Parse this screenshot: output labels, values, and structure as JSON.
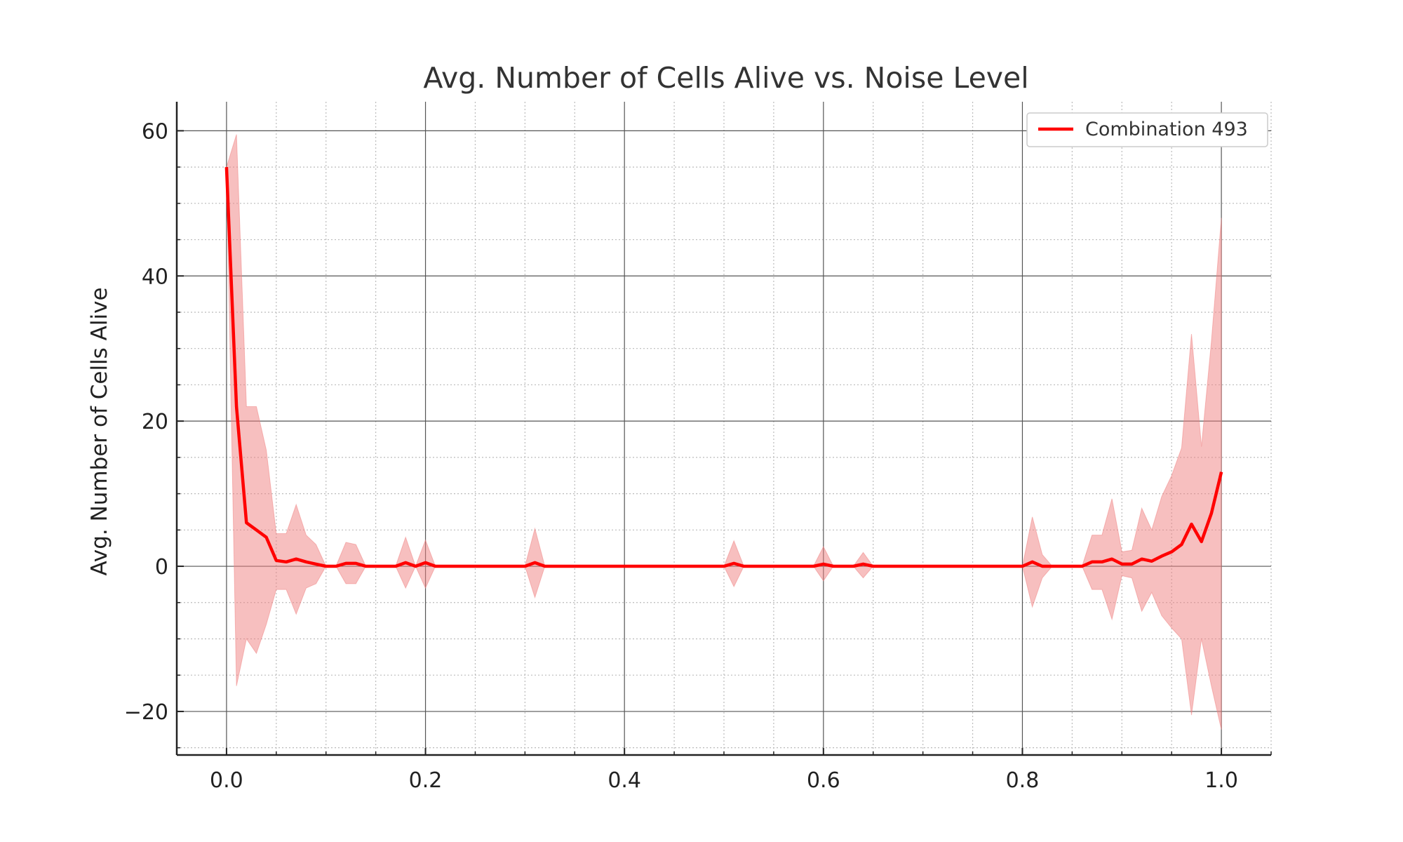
{
  "chart_data": {
    "type": "line",
    "title": "Avg. Number of Cells Alive vs. Noise Level",
    "xlabel": "",
    "ylabel": "Avg. Number of Cells Alive",
    "xlim": [
      -0.05,
      1.05
    ],
    "ylim": [
      -26,
      64
    ],
    "x_ticks": [
      0.0,
      0.2,
      0.4,
      0.6,
      0.8,
      1.0
    ],
    "x_tick_labels": [
      "0.0",
      "0.2",
      "0.4",
      "0.6",
      "0.8",
      "1.0"
    ],
    "y_ticks": [
      -20,
      0,
      20,
      40,
      60
    ],
    "y_tick_labels": [
      "−20",
      "0",
      "20",
      "40",
      "60"
    ],
    "grid": true,
    "legend_position": "top-right",
    "colors": {
      "line": "#ff0000",
      "band": "#f08080"
    },
    "series": [
      {
        "name": "Combination 493",
        "x": [
          0.0,
          0.01,
          0.02,
          0.03,
          0.04,
          0.05,
          0.06,
          0.07,
          0.08,
          0.09,
          0.1,
          0.11,
          0.12,
          0.13,
          0.14,
          0.15,
          0.16,
          0.17,
          0.18,
          0.19,
          0.2,
          0.21,
          0.22,
          0.23,
          0.24,
          0.25,
          0.26,
          0.27,
          0.28,
          0.29,
          0.3,
          0.31,
          0.32,
          0.33,
          0.5,
          0.51,
          0.52,
          0.59,
          0.6,
          0.61,
          0.63,
          0.64,
          0.65,
          0.69,
          0.7,
          0.71,
          0.8,
          0.81,
          0.82,
          0.83,
          0.84,
          0.85,
          0.86,
          0.87,
          0.88,
          0.89,
          0.9,
          0.91,
          0.92,
          0.93,
          0.94,
          0.95,
          0.96,
          0.97,
          0.98,
          0.99,
          1.0
        ],
        "y": [
          55,
          22,
          6,
          5,
          4,
          0.8,
          0.6,
          1.0,
          0.6,
          0.3,
          0,
          0,
          0.4,
          0.4,
          0,
          0,
          0,
          0,
          0.5,
          0,
          0.5,
          0,
          0,
          0,
          0,
          0,
          0,
          0,
          0,
          0,
          0,
          0.5,
          0,
          0,
          0,
          0.4,
          0,
          0,
          0.3,
          0,
          0,
          0.3,
          0,
          0,
          0,
          0,
          0,
          0.6,
          0,
          0,
          0,
          0,
          0,
          0.6,
          0.6,
          1.0,
          0.3,
          0.3,
          1.0,
          0.7,
          1.4,
          2.0,
          3.0,
          5.8,
          3.4,
          7.3,
          13
        ],
        "lower": [
          55,
          -16.5,
          -10,
          -12,
          -8,
          -3.2,
          -3.2,
          -6.6,
          -3,
          -2.4,
          0,
          0,
          -2.4,
          -2.4,
          0,
          0,
          0,
          0,
          -3,
          0,
          -3,
          0,
          0,
          0,
          0,
          0,
          0,
          0,
          0,
          0,
          0,
          -4.3,
          0,
          0,
          0,
          -2.8,
          0,
          0,
          -2.0,
          0,
          0,
          -1.6,
          0,
          0,
          0,
          0,
          0,
          -5.6,
          -1.6,
          0,
          0,
          0,
          0,
          -3.2,
          -3.2,
          -7.3,
          -1.3,
          -1.6,
          -6.2,
          -3.6,
          -6.8,
          -8.5,
          -10,
          -20.5,
          -10,
          -16.5,
          -22.5
        ],
        "upper": [
          55,
          59.5,
          22,
          22,
          16,
          4.5,
          4.5,
          8.5,
          4.3,
          3.0,
          0,
          0,
          3.3,
          3.0,
          0,
          0,
          0,
          0,
          4.0,
          0,
          3.6,
          0,
          0,
          0,
          0,
          0,
          0,
          0,
          0,
          0,
          0,
          5.2,
          0,
          0,
          0,
          3.5,
          0,
          0,
          2.7,
          0,
          0,
          1.9,
          0,
          0,
          0,
          0,
          0,
          6.8,
          1.6,
          0,
          0,
          0,
          0,
          4.3,
          4.3,
          9.3,
          2.0,
          2.2,
          8.0,
          5.0,
          9.6,
          12.5,
          16.3,
          32,
          16.5,
          31,
          48
        ]
      }
    ]
  }
}
